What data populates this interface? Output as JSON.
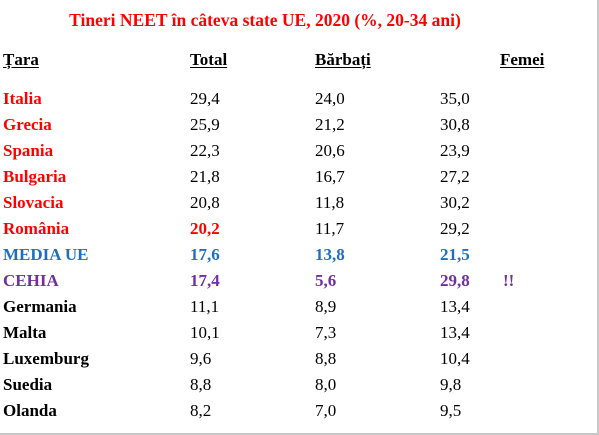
{
  "title": "Tineri  NEET în câteva state UE, 2020 (%,  20-34 ani)",
  "headers": {
    "country": "Țara",
    "total": "Total",
    "men": "Bărbați",
    "women": "Femei"
  },
  "colors": {
    "title": "#ff0000",
    "red": "#ff0000",
    "eu": "#1f6fbf",
    "cz": "#7030a0",
    "black": "#000000"
  },
  "rows": [
    {
      "country": "Italia",
      "total": "29,4",
      "men": "24,0",
      "women": "35,0",
      "note": ""
    },
    {
      "country": "Grecia",
      "total": "25,9",
      "men": "21,2",
      "women": "30,8",
      "note": ""
    },
    {
      "country": "Spania",
      "total": "22,3",
      "men": "20,6",
      "women": "23,9",
      "note": ""
    },
    {
      "country": "Bulgaria",
      "total": "21,8",
      "men": "16,7",
      "women": "27,2",
      "note": ""
    },
    {
      "country": "Slovacia",
      "total": "20,8",
      "men": "11,8",
      "women": "30,2",
      "note": ""
    },
    {
      "country": "România",
      "total": "20,2",
      "men": "11,7",
      "women": "29,2",
      "note": ""
    },
    {
      "country": "MEDIA UE",
      "total": "17,6",
      "men": "13,8",
      "women": "21,5",
      "note": ""
    },
    {
      "country": "CEHIA",
      "total": "17,4",
      "men": "5,6",
      "women": "29,8",
      "note": "!!"
    },
    {
      "country": "Germania",
      "total": "11,1",
      "men": "8,9",
      "women": "13,4",
      "note": ""
    },
    {
      "country": "Malta",
      "total": "10,1",
      "men": "7,3",
      "women": "13,4",
      "note": ""
    },
    {
      "country": "Luxemburg",
      "total": "9,6",
      "men": "8,8",
      "women": "10,4",
      "note": ""
    },
    {
      "country": "Suedia",
      "total": "8,8",
      "men": "8,0",
      "women": "9,8",
      "note": ""
    },
    {
      "country": "Olanda",
      "total": "8,2",
      "men": "7,0",
      "women": "9,5",
      "note": ""
    }
  ]
}
